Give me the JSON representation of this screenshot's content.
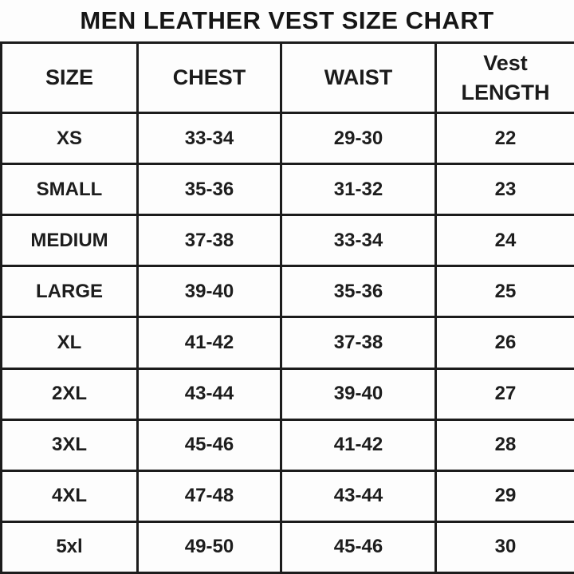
{
  "title": "MEN LEATHER VEST SIZE CHART",
  "table": {
    "headers": {
      "size": "SIZE",
      "chest": "CHEST",
      "waist": "WAIST",
      "vest_length": "Vest\nLENGTH"
    },
    "rows": [
      {
        "size": "XS",
        "chest": "33-34",
        "waist": "29-30",
        "length": "22"
      },
      {
        "size": "SMALL",
        "chest": "35-36",
        "waist": "31-32",
        "length": "23"
      },
      {
        "size": "MEDIUM",
        "chest": "37-38",
        "waist": "33-34",
        "length": "24"
      },
      {
        "size": "LARGE",
        "chest": "39-40",
        "waist": "35-36",
        "length": "25"
      },
      {
        "size": "XL",
        "chest": "41-42",
        "waist": "37-38",
        "length": "26"
      },
      {
        "size": "2XL",
        "chest": "43-44",
        "waist": "39-40",
        "length": "27"
      },
      {
        "size": "3XL",
        "chest": "45-46",
        "waist": "41-42",
        "length": "28"
      },
      {
        "size": "4XL",
        "chest": "47-48",
        "waist": "43-44",
        "length": "29"
      },
      {
        "size": "5xl",
        "chest": "49-50",
        "waist": "45-46",
        "length": "30"
      }
    ]
  },
  "colors": {
    "background": "#fdfdfd",
    "border": "#1c1c1c",
    "text": "#1a1a1a"
  },
  "chart_data": {
    "type": "table",
    "title": "MEN LEATHER VEST SIZE CHART",
    "columns": [
      "SIZE",
      "CHEST",
      "WAIST",
      "Vest LENGTH"
    ],
    "rows": [
      [
        "XS",
        "33-34",
        "29-30",
        22
      ],
      [
        "SMALL",
        "35-36",
        "31-32",
        23
      ],
      [
        "MEDIUM",
        "37-38",
        "33-34",
        24
      ],
      [
        "LARGE",
        "39-40",
        "35-36",
        25
      ],
      [
        "XL",
        "41-42",
        "37-38",
        26
      ],
      [
        "2XL",
        "43-44",
        "39-40",
        27
      ],
      [
        "3XL",
        "45-46",
        "41-42",
        28
      ],
      [
        "4XL",
        "47-48",
        "43-44",
        29
      ],
      [
        "5xl",
        "49-50",
        "45-46",
        30
      ]
    ]
  }
}
